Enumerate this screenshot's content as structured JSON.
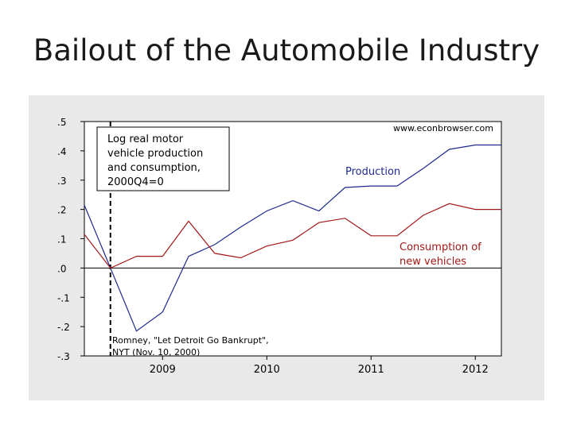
{
  "slide": {
    "title": "Bailout of the Automobile Industry"
  },
  "chart_data": {
    "type": "line",
    "title": "",
    "xlabel": "",
    "ylabel": "",
    "watermark": "www.econbrowser.com",
    "x_ticks": [
      {
        "label": "2009",
        "x": 2009.0
      },
      {
        "label": "2010",
        "x": 2010.0
      },
      {
        "label": "2011",
        "x": 2011.0
      },
      {
        "label": "2012",
        "x": 2012.0
      }
    ],
    "y_ticks": [
      {
        "label": ".5",
        "y": 0.5
      },
      {
        "label": ".4",
        "y": 0.4
      },
      {
        "label": ".3",
        "y": 0.3
      },
      {
        "label": ".2",
        "y": 0.2
      },
      {
        "label": ".1",
        "y": 0.1
      },
      {
        "label": ".0",
        "y": 0.0
      },
      {
        "label": "-.1",
        "y": -0.1
      },
      {
        "label": "-.2",
        "y": -0.2
      },
      {
        "label": "-.3",
        "y": -0.3
      }
    ],
    "xlim": [
      2008.25,
      2012.25
    ],
    "ylim": [
      -0.3,
      0.5
    ],
    "grid": false,
    "zero_line": 0.0,
    "event_line": {
      "x": 2008.5
    },
    "annotations": {
      "top_left": [
        "Log real motor",
        "vehicle production",
        "and consumption,",
        "2000Q4=0"
      ],
      "bottom_left": [
        "Romney, \"Let Detroit Go Bankrupt\",",
        "NYT (Nov. 10, 2000)"
      ]
    },
    "series": [
      {
        "name": "Production",
        "label_lines": [
          "Production"
        ],
        "color": "#1f2a8f",
        "x": [
          2008.25,
          2008.5,
          2008.75,
          2009.0,
          2009.25,
          2009.5,
          2009.75,
          2010.0,
          2010.25,
          2010.5,
          2010.75,
          2011.0,
          2011.25,
          2011.5,
          2011.75,
          2012.0,
          2012.25
        ],
        "y": [
          0.215,
          0.0,
          -0.215,
          -0.15,
          0.04,
          0.08,
          0.14,
          0.195,
          0.23,
          0.195,
          0.275,
          0.28,
          0.28,
          0.34,
          0.405,
          0.42,
          0.42
        ]
      },
      {
        "name": "Consumption of new vehicles",
        "label_lines": [
          "Consumption of",
          "new vehicles"
        ],
        "color": "#a31818",
        "x": [
          2008.25,
          2008.5,
          2008.75,
          2009.0,
          2009.25,
          2009.5,
          2009.75,
          2010.0,
          2010.25,
          2010.5,
          2010.75,
          2011.0,
          2011.25,
          2011.5,
          2011.75,
          2012.0,
          2012.25
        ],
        "y": [
          0.115,
          0.0,
          0.04,
          0.04,
          0.16,
          0.05,
          0.035,
          0.075,
          0.095,
          0.155,
          0.17,
          0.11,
          0.11,
          0.18,
          0.22,
          0.2,
          0.2
        ]
      }
    ]
  }
}
